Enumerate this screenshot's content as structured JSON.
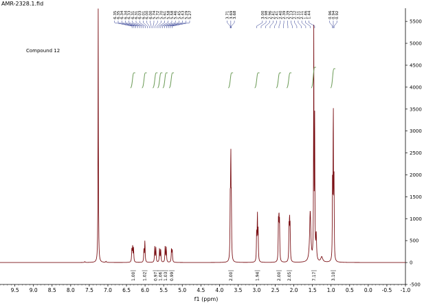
{
  "chart_data": {
    "type": "line",
    "title": "AMR-2328.1.fid",
    "annotation": "Compound 12",
    "xlabel": "f1 (ppm)",
    "ylabel": "",
    "xlim": [
      9.9,
      -1.0
    ],
    "ylim": [
      -500,
      5800
    ],
    "x_ticks": [
      "9.5",
      "9.0",
      "8.5",
      "8.0",
      "7.5",
      "7.0",
      "6.5",
      "6.0",
      "5.5",
      "5.0",
      "4.5",
      "4.0",
      "3.5",
      "3.0",
      "2.5",
      "2.0",
      "1.5",
      "1.0",
      "0.5",
      "0.0",
      "-0.5",
      "-1.0"
    ],
    "y_ticks": [
      "-500",
      "0",
      "500",
      "1000",
      "1500",
      "2000",
      "2500",
      "3000",
      "3500",
      "4000",
      "4500",
      "5000",
      "5500"
    ],
    "peak_label_groups": [
      {
        "labels": [
          "6.35",
          "6.35",
          "6.34",
          "6.34",
          "6.33",
          "6.31",
          "6.31",
          "6.03",
          "6.01",
          "6.00",
          "6.00",
          "5.74",
          "5.72",
          "5.70",
          "5.61",
          "5.58",
          "5.58",
          "5.46",
          "5.45",
          "5.43",
          "5.29",
          "5.27"
        ],
        "ppm_from": 6.35,
        "ppm_to": 5.27
      },
      {
        "labels": [
          "3.71",
          "3.69",
          "3.68"
        ],
        "ppm_from": 3.71,
        "ppm_to": 3.68
      },
      {
        "labels": [
          "3.00",
          "2.98",
          "2.96",
          "2.41",
          "2.41",
          "2.40",
          "2.39",
          "2.39",
          "2.13",
          "2.12",
          "2.11",
          "2.11",
          "1.46",
          "1.44"
        ],
        "ppm_from": 3.0,
        "ppm_to": 1.44
      },
      {
        "labels": [
          "0.96",
          "0.94",
          "0.92"
        ],
        "ppm_from": 0.96,
        "ppm_to": 0.92
      }
    ],
    "integrals": [
      {
        "ppm": 6.32,
        "value": "1.00"
      },
      {
        "ppm": 6.01,
        "value": "1.02"
      },
      {
        "ppm": 5.72,
        "value": "0.97"
      },
      {
        "ppm": 5.59,
        "value": "1.06"
      },
      {
        "ppm": 5.45,
        "value": "1.03"
      },
      {
        "ppm": 5.28,
        "value": "0.99"
      },
      {
        "ppm": 3.69,
        "value": "2.00"
      },
      {
        "ppm": 2.98,
        "value": "1.94"
      },
      {
        "ppm": 2.4,
        "value": "2.00"
      },
      {
        "ppm": 2.12,
        "value": "2.05"
      },
      {
        "ppm": 1.46,
        "value": "7.17"
      },
      {
        "ppm": 0.94,
        "value": "3.10"
      }
    ],
    "peaks": [
      {
        "ppm": 7.26,
        "height": 5800,
        "width": 0.006
      },
      {
        "ppm": 7.62,
        "height": 20,
        "width": 0.01
      },
      {
        "ppm": 7.05,
        "height": 25,
        "width": 0.01
      },
      {
        "ppm": 6.355,
        "height": 300,
        "width": 0.008
      },
      {
        "ppm": 6.335,
        "height": 340,
        "width": 0.008
      },
      {
        "ppm": 6.31,
        "height": 320,
        "width": 0.008
      },
      {
        "ppm": 6.03,
        "height": 280,
        "width": 0.008
      },
      {
        "ppm": 6.005,
        "height": 480,
        "width": 0.008
      },
      {
        "ppm": 5.74,
        "height": 350,
        "width": 0.008
      },
      {
        "ppm": 5.71,
        "height": 330,
        "width": 0.008
      },
      {
        "ppm": 5.61,
        "height": 320,
        "width": 0.008
      },
      {
        "ppm": 5.58,
        "height": 300,
        "width": 0.008
      },
      {
        "ppm": 5.46,
        "height": 360,
        "width": 0.008
      },
      {
        "ppm": 5.43,
        "height": 340,
        "width": 0.008
      },
      {
        "ppm": 5.29,
        "height": 300,
        "width": 0.008
      },
      {
        "ppm": 5.27,
        "height": 280,
        "width": 0.008
      },
      {
        "ppm": 3.71,
        "height": 1300,
        "width": 0.007
      },
      {
        "ppm": 3.695,
        "height": 2300,
        "width": 0.007
      },
      {
        "ppm": 3.68,
        "height": 1200,
        "width": 0.007
      },
      {
        "ppm": 3.0,
        "height": 700,
        "width": 0.007
      },
      {
        "ppm": 2.98,
        "height": 1050,
        "width": 0.007
      },
      {
        "ppm": 2.96,
        "height": 680,
        "width": 0.007
      },
      {
        "ppm": 2.415,
        "height": 850,
        "width": 0.007
      },
      {
        "ppm": 2.4,
        "height": 950,
        "width": 0.007
      },
      {
        "ppm": 2.385,
        "height": 820,
        "width": 0.007
      },
      {
        "ppm": 2.13,
        "height": 760,
        "width": 0.007
      },
      {
        "ppm": 2.115,
        "height": 900,
        "width": 0.007
      },
      {
        "ppm": 2.1,
        "height": 740,
        "width": 0.007
      },
      {
        "ppm": 1.56,
        "height": 1150,
        "width": 0.02
      },
      {
        "ppm": 1.465,
        "height": 5200,
        "width": 0.006
      },
      {
        "ppm": 1.44,
        "height": 3100,
        "width": 0.006
      },
      {
        "ppm": 1.4,
        "height": 600,
        "width": 0.012
      },
      {
        "ppm": 1.25,
        "height": 120,
        "width": 0.03
      },
      {
        "ppm": 0.96,
        "height": 1900,
        "width": 0.006
      },
      {
        "ppm": 0.94,
        "height": 3650,
        "width": 0.006
      },
      {
        "ppm": 0.92,
        "height": 1750,
        "width": 0.006
      }
    ],
    "grid": false,
    "line_color": "#7a0f14",
    "integral_color": "#6a9a55",
    "label_line_color": "#1f2d8a"
  }
}
